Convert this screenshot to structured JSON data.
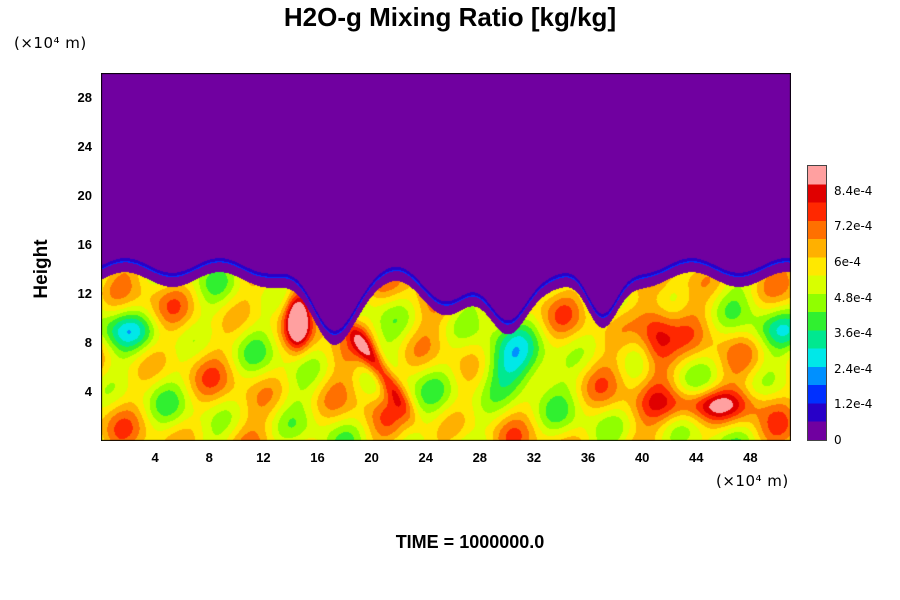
{
  "chart_data": {
    "type": "heatmap",
    "title": "H2O-g Mixing Ratio [kg/kg]",
    "ylabel": "Height",
    "y_unit": "(×10⁴ m)",
    "x_unit": "(×10⁴ m)",
    "xlim": [
      0,
      51
    ],
    "ylim": [
      0,
      30
    ],
    "xticks": [
      "4",
      "8",
      "12",
      "16",
      "20",
      "24",
      "28",
      "32",
      "36",
      "40",
      "44",
      "48"
    ],
    "yticks": [
      "4",
      "8",
      "12",
      "16",
      "20",
      "24",
      "28"
    ],
    "colorbar": {
      "ticks": [
        "0",
        "1.2e-4",
        "2.4e-4",
        "3.6e-4",
        "4.8e-4",
        "6e-4",
        "7.2e-4",
        "8.4e-4"
      ],
      "range": [
        0,
        0.00093
      ],
      "colors": [
        "#7000a0",
        "#2800c8",
        "#0030ff",
        "#0090ff",
        "#00e8e8",
        "#00e890",
        "#30f030",
        "#90ff00",
        "#d8ff00",
        "#ffe800",
        "#ffb000",
        "#ff7000",
        "#ff2800",
        "#e00000",
        "#ffa0a0"
      ]
    },
    "boundary_height": 14,
    "background_value": 0,
    "lower_value_typical": 0.00058,
    "features": [
      {
        "kind": "moist_plume",
        "x": 14.5,
        "y": 10
      },
      {
        "kind": "moist_plume",
        "x": 21,
        "y": 6
      },
      {
        "kind": "moist_plume",
        "x": 41,
        "y": 7
      },
      {
        "kind": "dry_intrusion",
        "x": 17,
        "y": 10
      },
      {
        "kind": "dry_intrusion",
        "x": 30,
        "y": 10
      },
      {
        "kind": "dry_intrusion",
        "x": 37,
        "y": 10
      }
    ],
    "time_label": "TIME = 1000000.0"
  }
}
